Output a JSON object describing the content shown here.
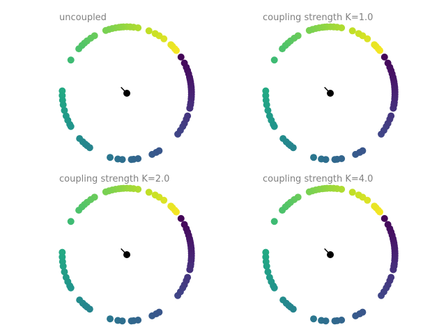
{
  "chart_data": [
    {
      "type": "scatter",
      "title": "uncoupled",
      "xlim": [
        -1.1,
        1.1
      ],
      "ylim": [
        -1.1,
        1.1
      ],
      "grid": false,
      "axes_visible": false,
      "colormap": "viridis",
      "center_point": {
        "x": 0,
        "y": 0,
        "color": "#000000"
      },
      "order_parameter_vector": {
        "x": -0.09,
        "y": 0.09,
        "color": "#000000"
      },
      "angles_deg": [
        -13,
        -10,
        -8,
        -5,
        -3,
        -1,
        1,
        3,
        5,
        6,
        8,
        10,
        12,
        14,
        17,
        20,
        23,
        27,
        33,
        40,
        42,
        45,
        47,
        55,
        60,
        64,
        70,
        80,
        84,
        87,
        90,
        93,
        95,
        97,
        100,
        103,
        106,
        109,
        120,
        124,
        128,
        131,
        134,
        138,
        150,
        178,
        182,
        186,
        190,
        195,
        200,
        204,
        208,
        210,
        223,
        227,
        230,
        232,
        235,
        255,
        262,
        266,
        274,
        276,
        280,
        293,
        297,
        300,
        322,
        326,
        330,
        333,
        337,
        340,
        347,
        350
      ]
    },
    {
      "type": "scatter",
      "title": "coupling strength K=1.0",
      "xlim": [
        -1.1,
        1.1
      ],
      "ylim": [
        -1.1,
        1.1
      ],
      "grid": false,
      "axes_visible": false,
      "colormap": "viridis",
      "center_point": {
        "x": 0,
        "y": 0,
        "color": "#000000"
      },
      "order_parameter_vector": {
        "x": -0.09,
        "y": 0.09,
        "color": "#000000"
      },
      "angles_deg": [
        -13,
        -10,
        -8,
        -5,
        -3,
        -1,
        1,
        3,
        5,
        6,
        8,
        10,
        12,
        14,
        17,
        20,
        23,
        27,
        33,
        40,
        42,
        45,
        47,
        55,
        60,
        64,
        70,
        80,
        84,
        87,
        90,
        93,
        95,
        97,
        100,
        103,
        106,
        109,
        120,
        124,
        128,
        131,
        134,
        138,
        150,
        178,
        182,
        186,
        190,
        195,
        200,
        204,
        208,
        210,
        223,
        227,
        230,
        232,
        235,
        255,
        262,
        266,
        274,
        276,
        280,
        293,
        297,
        300,
        322,
        326,
        330,
        333,
        337,
        340,
        347,
        350
      ]
    },
    {
      "type": "scatter",
      "title": "coupling strength K=2.0",
      "xlim": [
        -1.1,
        1.1
      ],
      "ylim": [
        -1.1,
        1.1
      ],
      "grid": false,
      "axes_visible": false,
      "colormap": "viridis",
      "center_point": {
        "x": 0,
        "y": 0,
        "color": "#000000"
      },
      "order_parameter_vector": {
        "x": -0.09,
        "y": 0.09,
        "color": "#000000"
      },
      "angles_deg": [
        -13,
        -10,
        -8,
        -5,
        -3,
        -1,
        1,
        3,
        5,
        6,
        8,
        10,
        12,
        14,
        17,
        20,
        23,
        27,
        33,
        40,
        42,
        45,
        47,
        55,
        60,
        64,
        70,
        80,
        84,
        87,
        90,
        93,
        95,
        97,
        100,
        103,
        106,
        109,
        120,
        124,
        128,
        131,
        134,
        138,
        150,
        178,
        182,
        186,
        190,
        195,
        200,
        204,
        208,
        210,
        223,
        227,
        230,
        232,
        235,
        255,
        262,
        266,
        274,
        276,
        280,
        293,
        297,
        300,
        322,
        326,
        330,
        333,
        337,
        340,
        347,
        350
      ]
    },
    {
      "type": "scatter",
      "title": "coupling strength K=4.0",
      "xlim": [
        -1.1,
        1.1
      ],
      "ylim": [
        -1.1,
        1.1
      ],
      "grid": false,
      "axes_visible": false,
      "colormap": "viridis",
      "center_point": {
        "x": 0,
        "y": 0,
        "color": "#000000"
      },
      "order_parameter_vector": {
        "x": -0.09,
        "y": 0.09,
        "color": "#000000"
      },
      "angles_deg": [
        -13,
        -10,
        -8,
        -5,
        -3,
        -1,
        1,
        3,
        5,
        6,
        8,
        10,
        12,
        14,
        17,
        20,
        23,
        27,
        33,
        40,
        42,
        45,
        47,
        55,
        60,
        64,
        70,
        80,
        84,
        87,
        90,
        93,
        95,
        97,
        100,
        103,
        106,
        109,
        120,
        124,
        128,
        131,
        134,
        138,
        150,
        178,
        182,
        186,
        190,
        195,
        200,
        204,
        208,
        210,
        223,
        227,
        230,
        232,
        235,
        255,
        262,
        266,
        274,
        276,
        280,
        293,
        297,
        300,
        322,
        326,
        330,
        333,
        337,
        340,
        347,
        350
      ]
    }
  ]
}
